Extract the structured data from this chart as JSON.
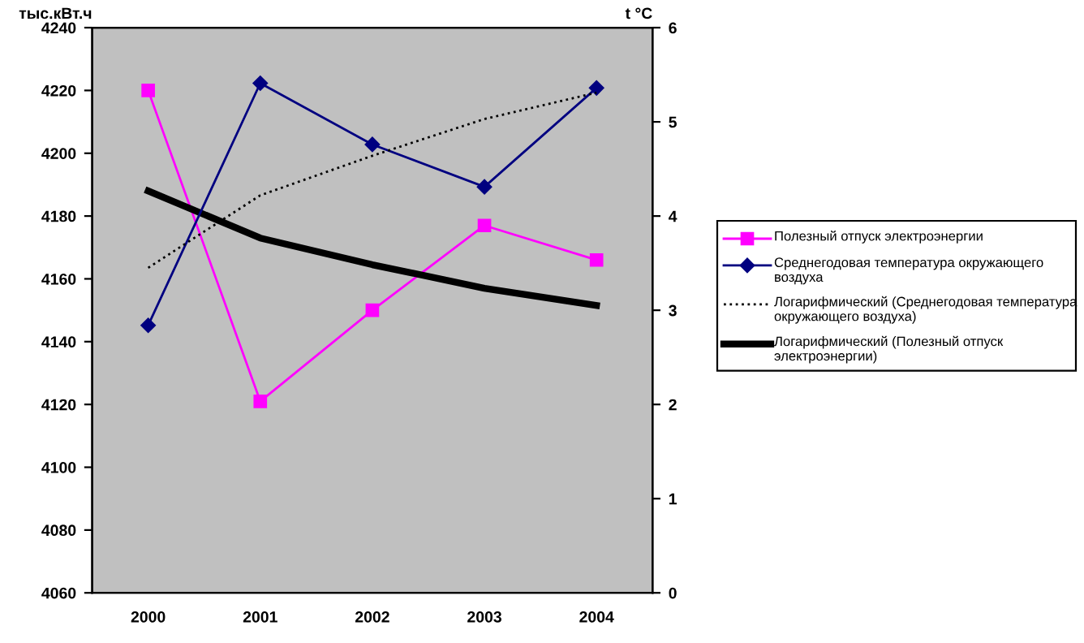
{
  "chart_data": {
    "type": "line",
    "ylabel": "тыс.кВт.ч",
    "y2label": "t °C",
    "categories": [
      "2000",
      "2001",
      "2002",
      "2003",
      "2004"
    ],
    "series": [
      {
        "name": "Полезный отпуск электроэнергии",
        "color": "#ff00ff",
        "marker": "square",
        "values": [
          4220,
          4121,
          4150,
          4177,
          4166
        ]
      },
      {
        "name": "Среднегодовая температура окружающего воздуха",
        "color": "#000080",
        "marker": "diamond",
        "axis": "y2",
        "values": [
          2.84,
          5.41,
          4.76,
          4.31,
          5.36
        ]
      },
      {
        "name": "Логарифмический (Среднегодовая температура окружающего воздуха)",
        "color": "#000000",
        "marker": "none",
        "line_style": "dotted",
        "axis": "y2",
        "values": [
          3.45,
          4.22,
          4.64,
          5.03,
          5.31
        ]
      },
      {
        "name": "Логарифмический (Полезный отпуск электроэнергии)",
        "color": "#000000",
        "marker": "none",
        "line_style": "solid",
        "values": [
          4188,
          4173,
          4164.5,
          4157,
          4151.5
        ]
      }
    ],
    "ylim": [
      4060,
      4240
    ],
    "yticks": [
      4060,
      4080,
      4100,
      4120,
      4140,
      4160,
      4180,
      4200,
      4220,
      4240
    ],
    "y2lim": [
      0,
      6
    ],
    "y2ticks": [
      0,
      1,
      2,
      3,
      4,
      5,
      6
    ],
    "grid": false,
    "legend": "right"
  }
}
